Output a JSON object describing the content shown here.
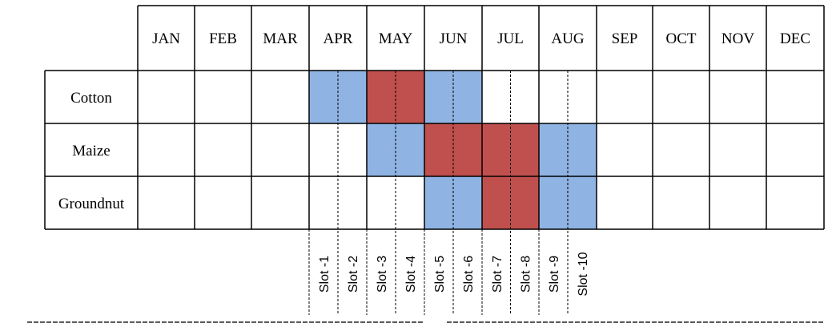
{
  "months": [
    "JAN",
    "FEB",
    "MAR",
    "APR",
    "MAY",
    "JUN",
    "JUL",
    "AUG",
    "SEP",
    "OCT",
    "NOV",
    "DEC"
  ],
  "crops": [
    {
      "name": "Cotton",
      "cells": [
        "",
        "",
        "",
        "",
        "",
        "",
        "B",
        "B",
        "R",
        "R",
        "B",
        "B",
        "",
        "",
        "",
        "",
        "",
        "",
        "",
        "",
        "",
        "",
        "",
        ""
      ]
    },
    {
      "name": "Maize",
      "cells": [
        "",
        "",
        "",
        "",
        "",
        "",
        "",
        "",
        "B",
        "B",
        "R",
        "R",
        "R",
        "R",
        "B",
        "B",
        "",
        "",
        "",
        "",
        "",
        "",
        "",
        ""
      ]
    },
    {
      "name": "Groundnut",
      "cells": [
        "",
        "",
        "",
        "",
        "",
        "",
        "",
        "",
        "",
        "",
        "B",
        "B",
        "R",
        "R",
        "B",
        "B",
        "",
        "",
        "",
        "",
        "",
        "",
        "",
        ""
      ]
    }
  ],
  "slots": [
    "Slot -1",
    "Slot -2",
    "Slot -3",
    "Slot -4",
    "Slot -5",
    "Slot -6",
    "Slot -7",
    "Slot -8",
    "Slot -9",
    "Slot -10"
  ],
  "colors": {
    "blue": "#8fb4e3",
    "red": "#c0504d",
    "grid": "#000000"
  }
}
